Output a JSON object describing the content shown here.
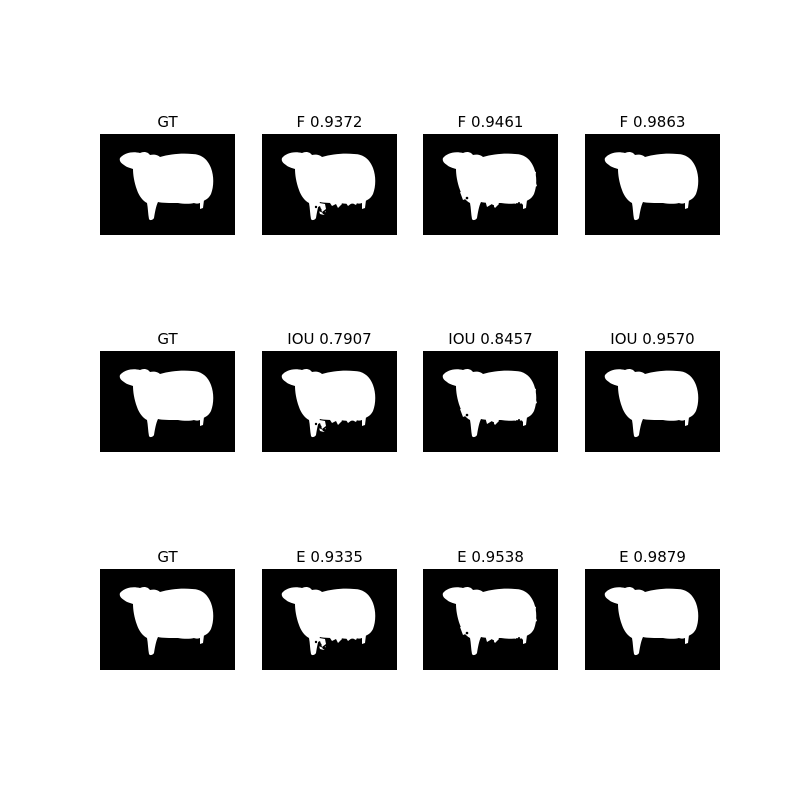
{
  "colors": {
    "background": "#ffffff",
    "mask_background": "#000000",
    "mask_foreground": "#ffffff",
    "title_text": "#000000"
  },
  "rows": [
    {
      "panels": [
        {
          "title": "GT",
          "variant": "gt"
        },
        {
          "title": "F 0.9372",
          "variant": "pred-a"
        },
        {
          "title": "F 0.9461",
          "variant": "pred-b"
        },
        {
          "title": "F 0.9863",
          "variant": "pred-c"
        }
      ]
    },
    {
      "panels": [
        {
          "title": "GT",
          "variant": "gt"
        },
        {
          "title": "IOU 0.7907",
          "variant": "pred-a"
        },
        {
          "title": "IOU 0.8457",
          "variant": "pred-b"
        },
        {
          "title": "IOU 0.9570",
          "variant": "pred-c"
        }
      ]
    },
    {
      "panels": [
        {
          "title": "GT",
          "variant": "gt"
        },
        {
          "title": "E 0.9335",
          "variant": "pred-a"
        },
        {
          "title": "E 0.9538",
          "variant": "pred-b"
        },
        {
          "title": "E 0.9879",
          "variant": "pred-c"
        }
      ]
    }
  ]
}
